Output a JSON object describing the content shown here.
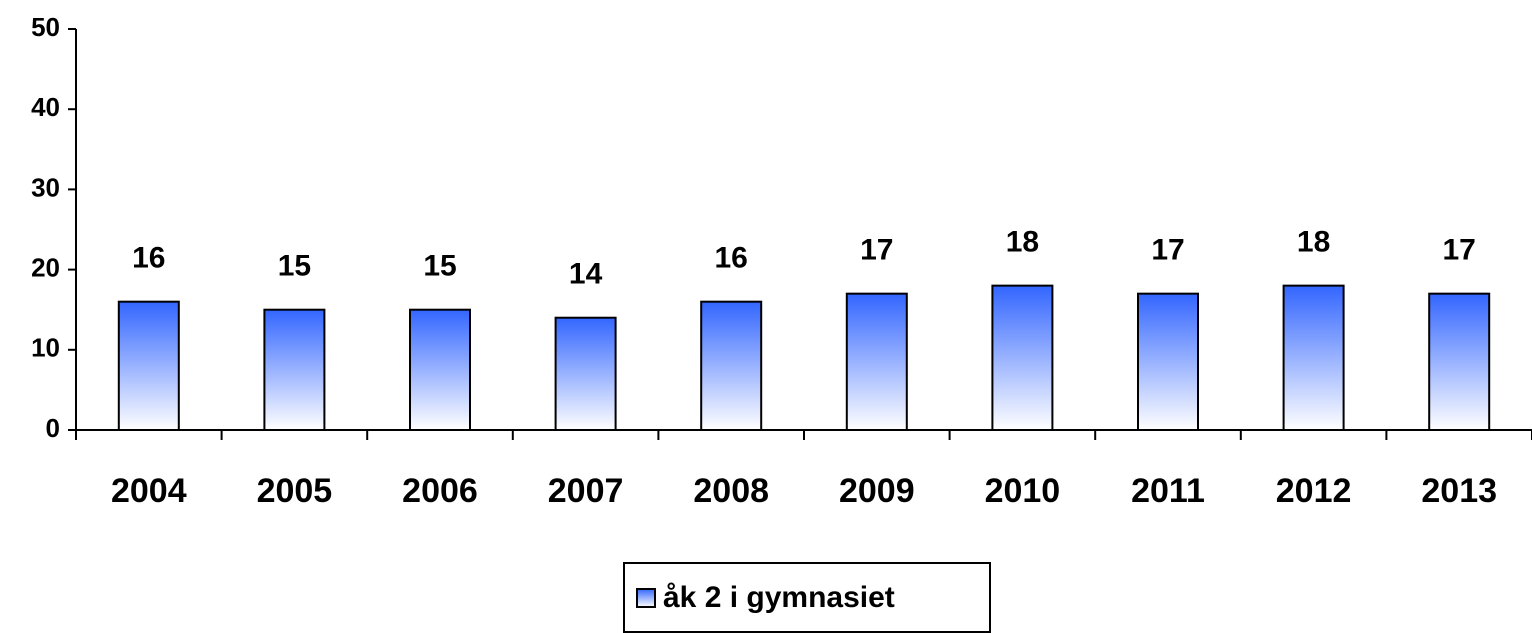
{
  "chart_data": {
    "type": "bar",
    "categories": [
      "2004",
      "2005",
      "2006",
      "2007",
      "2008",
      "2009",
      "2010",
      "2011",
      "2012",
      "2013"
    ],
    "series": [
      {
        "name": "åk 2 i gymnasiet",
        "color": "#3366ff",
        "values": [
          16,
          15,
          15,
          14,
          16,
          17,
          18,
          17,
          18,
          17
        ]
      }
    ],
    "ylim": [
      0,
      50
    ],
    "yticks": [
      0,
      10,
      20,
      30,
      40,
      50
    ],
    "grid": false,
    "legend": "bottom"
  }
}
